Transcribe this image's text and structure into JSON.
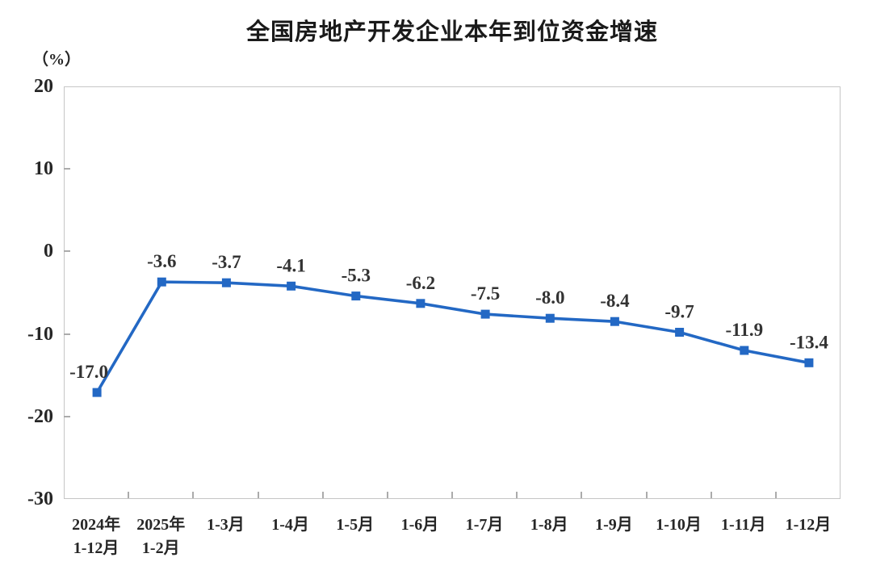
{
  "title": "全国房地产开发企业本年到位资金增速",
  "unit_label": "（%）",
  "chart_data": {
    "type": "line",
    "title": "全国房地产开发企业本年到位资金增速",
    "ylabel": "（%）",
    "xlabel": "",
    "categories": [
      "2024年\n1-12月",
      "2025年\n1-2月",
      "1-3月",
      "1-4月",
      "1-5月",
      "1-6月",
      "1-7月",
      "1-8月",
      "1-9月",
      "1-10月",
      "1-11月",
      "1-12月"
    ],
    "values": [
      -17.0,
      -3.6,
      -3.7,
      -4.1,
      -5.3,
      -6.2,
      -7.5,
      -8.0,
      -8.4,
      -9.7,
      -11.9,
      -13.4
    ],
    "data_labels": [
      "-17.0",
      "-3.6",
      "-3.7",
      "-4.1",
      "-5.3",
      "-6.2",
      "-7.5",
      "-8.0",
      "-8.4",
      "-9.7",
      "-11.9",
      "-13.4"
    ],
    "ylim": [
      -30,
      20
    ],
    "y_ticks": [
      20,
      10,
      0,
      -10,
      -20,
      -30
    ],
    "grid": false,
    "legend_position": "none",
    "line_color": "#2368c4",
    "marker": "square",
    "text_color": "#333333"
  }
}
